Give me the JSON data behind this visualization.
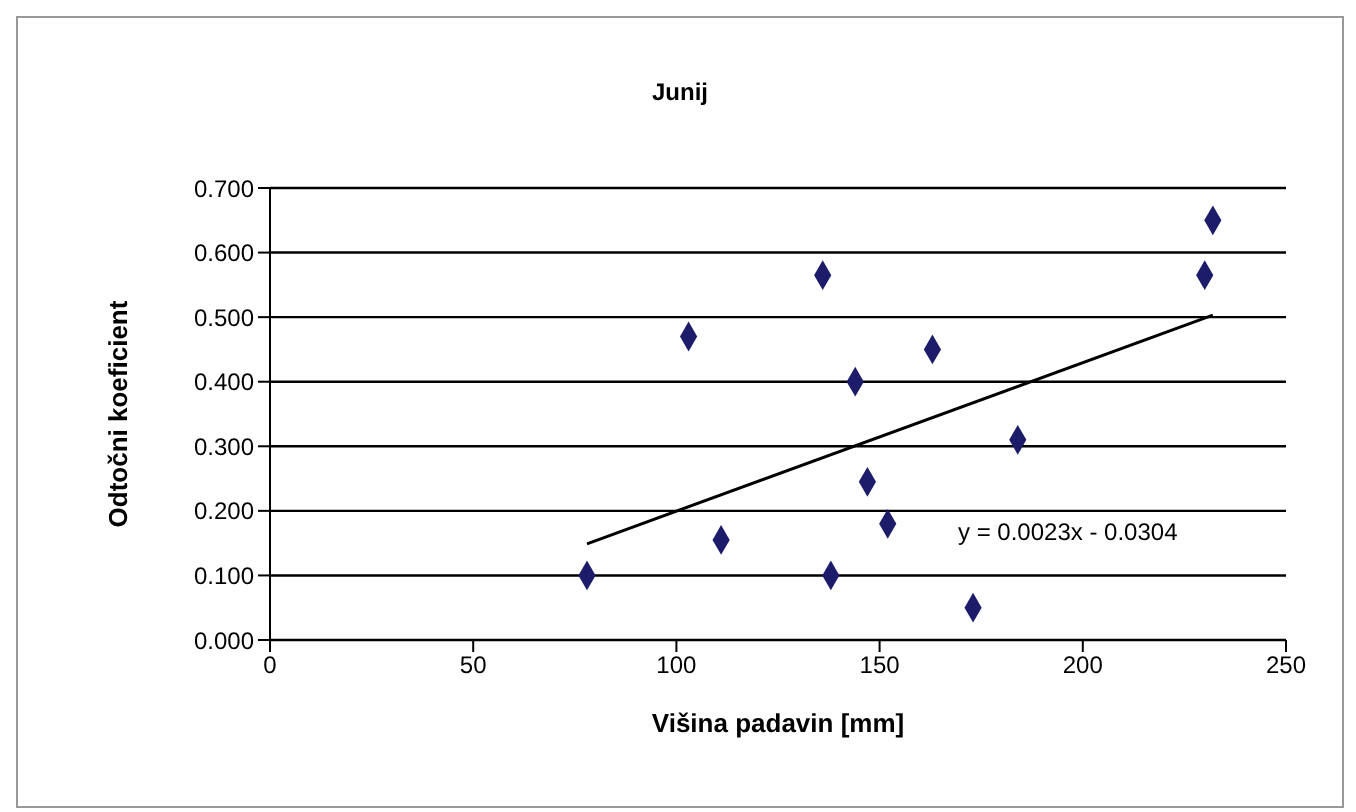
{
  "chart_data": {
    "type": "scatter",
    "title": "Junij",
    "xlabel": "Višina padavin [mm]",
    "ylabel": "Odtočni koeficient",
    "annotations": [
      "y = 0.0023x - 0.0304"
    ],
    "xlim": [
      0,
      250
    ],
    "xticks": [
      0,
      50,
      100,
      150,
      200,
      250
    ],
    "ylim": [
      0,
      0.7
    ],
    "yticks": [
      {
        "value": 0,
        "label": "0.000"
      },
      {
        "value": 0.1,
        "label": "0.100"
      },
      {
        "value": 0.2,
        "label": "0.200"
      },
      {
        "value": 0.3,
        "label": "0.300"
      },
      {
        "value": 0.4,
        "label": "0.400"
      },
      {
        "value": 0.5,
        "label": "0.500"
      },
      {
        "value": 0.6,
        "label": "0.600"
      },
      {
        "value": 0.7,
        "label": "0.700"
      }
    ],
    "grid": "y",
    "legend": false,
    "marker": "diamond",
    "series": [
      {
        "color": "#1c1c6b",
        "x": [
          78,
          103,
          111,
          136,
          138,
          144,
          147,
          152,
          163,
          173,
          184,
          230,
          232
        ],
        "values": [
          0.1,
          0.47,
          0.155,
          0.565,
          0.1,
          0.4,
          0.245,
          0.18,
          0.45,
          0.05,
          0.31,
          0.565,
          0.65
        ]
      },
      {
        "type": "line",
        "marker": "none",
        "color": "#000000",
        "x": [
          78,
          232
        ],
        "values": [
          0.149,
          0.503
        ]
      }
    ]
  }
}
